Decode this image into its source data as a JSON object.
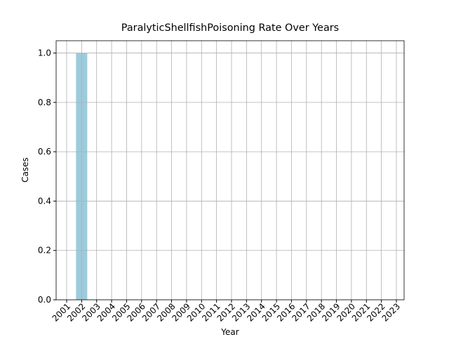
{
  "chart_data": {
    "type": "bar",
    "title": "ParalyticShellfishPoisoning Rate Over Years",
    "xlabel": "Year",
    "ylabel": "Cases",
    "categories": [
      "2001",
      "2002",
      "2003",
      "2004",
      "2005",
      "2006",
      "2007",
      "2008",
      "2009",
      "2010",
      "2011",
      "2012",
      "2013",
      "2014",
      "2015",
      "2016",
      "2017",
      "2018",
      "2019",
      "2020",
      "2021",
      "2022",
      "2023"
    ],
    "values": [
      0,
      1,
      0,
      0,
      0,
      0,
      0,
      0,
      0,
      0,
      0,
      0,
      0,
      0,
      0,
      0,
      0,
      0,
      0,
      0,
      0,
      0,
      0
    ],
    "color": "#9ccbdc",
    "ylim": [
      0,
      1.05
    ],
    "yticks": [
      {
        "value": 0,
        "label": "0.0"
      },
      {
        "value": 0.2,
        "label": "0.2"
      },
      {
        "value": 0.4,
        "label": "0.4"
      },
      {
        "value": 0.6,
        "label": "0.6"
      },
      {
        "value": 0.8,
        "label": "0.8"
      },
      {
        "value": 1,
        "label": "1.0"
      }
    ],
    "grid": true
  }
}
